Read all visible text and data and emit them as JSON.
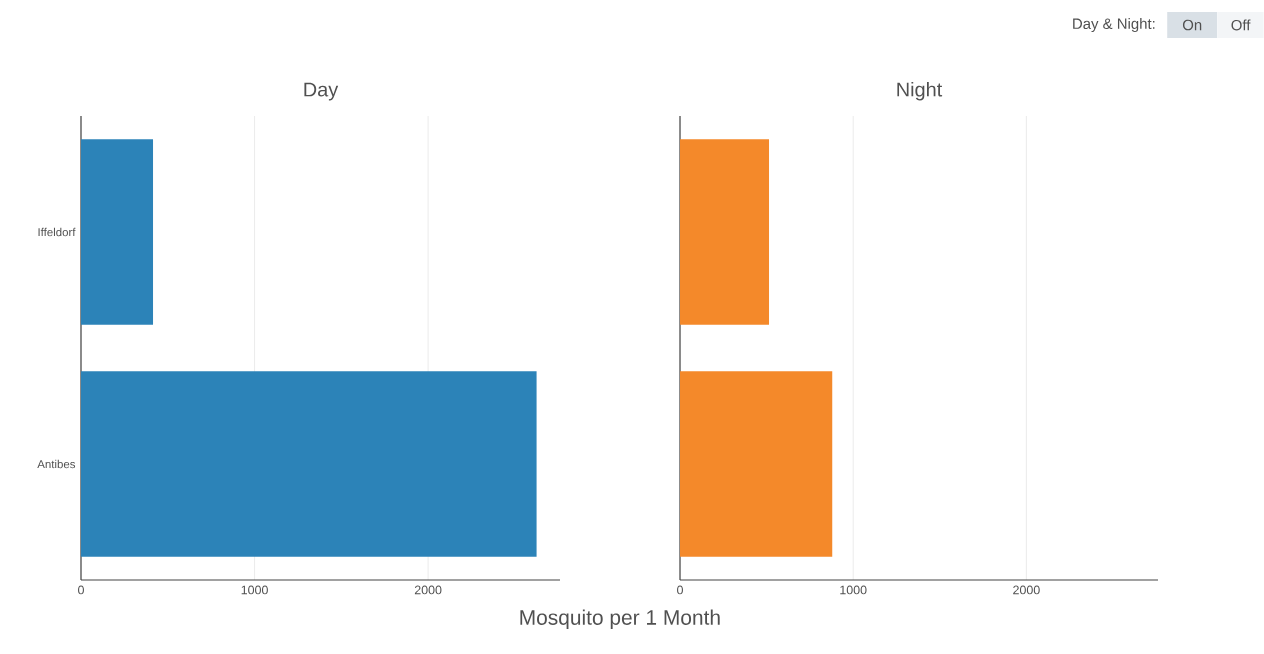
{
  "chart_data": [
    {
      "type": "bar",
      "title": "Day",
      "xlabel": "Mosquito per 1 Month",
      "orientation": "horizontal",
      "categories": [
        "Iffeldorf",
        "Antibes"
      ],
      "values": [
        415,
        2625
      ],
      "color": "#2c83b8",
      "xlim": [
        0,
        2760
      ],
      "xticks": [
        0,
        1000,
        2000
      ],
      "grid": "x"
    },
    {
      "type": "bar",
      "title": "Night",
      "orientation": "horizontal",
      "categories": [
        null,
        null
      ],
      "values": [
        514,
        879
      ],
      "color": "#f4892a",
      "xlim": [
        0,
        2760
      ],
      "xticks": [
        0,
        1000,
        2000
      ],
      "grid": "x",
      "tick_labels": "x",
      "annotations": [
        "Day & Night:",
        "On",
        "Off"
      ]
    }
  ]
}
